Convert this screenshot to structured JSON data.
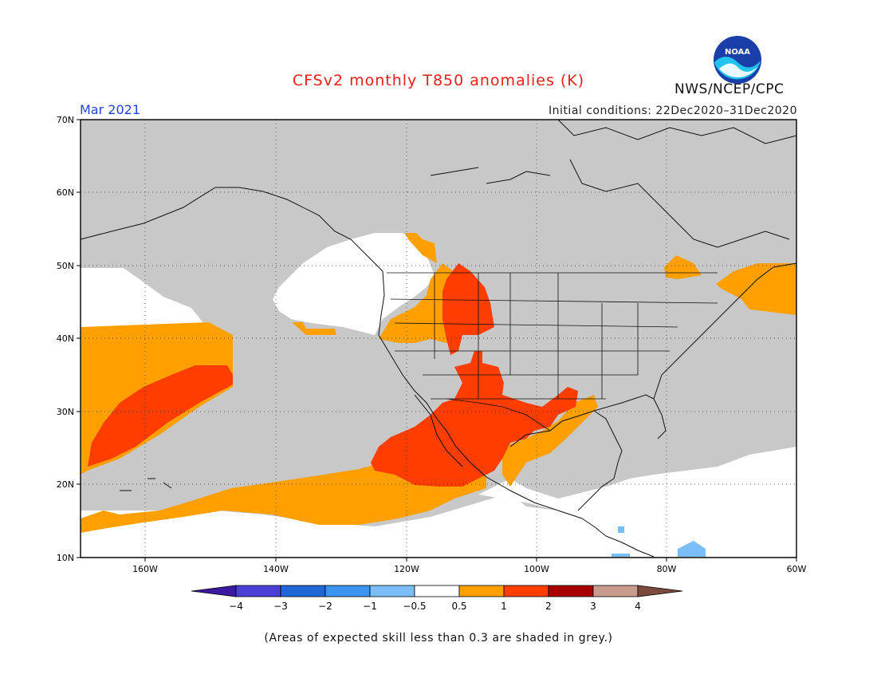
{
  "header": {
    "title": "CFSv2 monthly T850 anomalies (K)",
    "title_color": "#e8201a",
    "period": "Mar 2021",
    "period_color": "#2244dd",
    "initial_conditions": "Initial conditions: 22Dec2020–31Dec2020",
    "agency": "NWS/NCEP/CPC",
    "logo_text": "NOAA"
  },
  "axes": {
    "lat_labels": [
      "70N",
      "60N",
      "50N",
      "40N",
      "30N",
      "20N",
      "10N"
    ],
    "lon_labels": [
      "160W",
      "140W",
      "120W",
      "100W",
      "80W",
      "60W"
    ]
  },
  "legend": {
    "ticks": [
      "−4",
      "−3",
      "−2",
      "−1",
      "−0.5",
      "0.5",
      "1",
      "2",
      "3",
      "4"
    ],
    "colors": {
      "below_-4": "#3a1aa0",
      "-4_-3": "#4b3fd6",
      "-3_-2": "#1f66d6",
      "-2_-1": "#3d94f0",
      "-1_-0.5": "#7bbef7",
      "-0.5_0.5": "#ffffff",
      "0.5_1": "#ffa000",
      "1_2": "#ff3d00",
      "2_3": "#a80000",
      "3_4": "#c89b8c",
      "above_4": "#7a4a3a"
    },
    "low_skill_color": "#c8c8c8"
  },
  "footnote": "(Areas of expected skill less than 0.3 are shaded in grey.)"
}
